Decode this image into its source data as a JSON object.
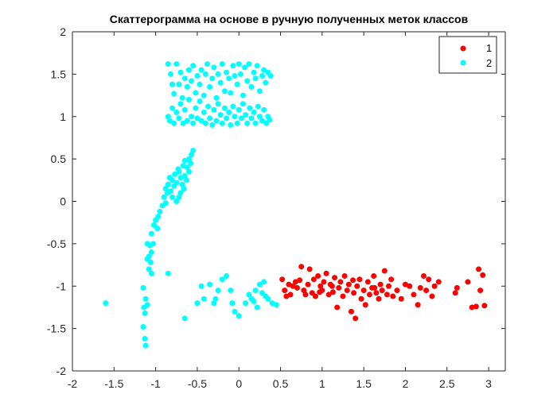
{
  "chart_data": {
    "type": "scatter",
    "title": "Скаттерограмма на основе в ручную полученных меток классов",
    "xlabel": "",
    "ylabel": "",
    "xlim": [
      -2,
      3.2
    ],
    "ylim": [
      -2,
      2
    ],
    "xticks": [
      -2,
      -1.5,
      -1,
      -0.5,
      0,
      0.5,
      1,
      1.5,
      2,
      2.5,
      3
    ],
    "yticks": [
      -2,
      -1.5,
      -1,
      -0.5,
      0,
      0.5,
      1,
      1.5,
      2
    ],
    "xtick_labels": [
      "-2",
      "-1.5",
      "-1",
      "-0.5",
      "0",
      "0.5",
      "1",
      "1.5",
      "2",
      "2.5",
      "3"
    ],
    "ytick_labels": [
      "-2",
      "-1.5",
      "-1",
      "-0.5",
      "0",
      "0.5",
      "1",
      "1.5",
      "2"
    ],
    "grid": false,
    "legend_position": "top-right",
    "series": [
      {
        "name": "1",
        "color": "#ff0000",
        "points": [
          [
            0.52,
            -0.92
          ],
          [
            0.55,
            -1.05
          ],
          [
            0.57,
            -1.12
          ],
          [
            0.6,
            -0.98
          ],
          [
            0.62,
            -1.1
          ],
          [
            0.65,
            -1.0
          ],
          [
            0.68,
            -0.95
          ],
          [
            0.7,
            -1.02
          ],
          [
            0.73,
            -0.93
          ],
          [
            0.75,
            -0.77
          ],
          [
            0.78,
            -1.05
          ],
          [
            0.8,
            -1.1
          ],
          [
            0.83,
            -0.98
          ],
          [
            0.85,
            -0.8
          ],
          [
            0.88,
            -1.08
          ],
          [
            0.9,
            -0.92
          ],
          [
            0.92,
            -1.12
          ],
          [
            0.95,
            -0.88
          ],
          [
            0.98,
            -1.0
          ],
          [
            1.0,
            -1.05
          ],
          [
            1.02,
            -0.95
          ],
          [
            1.05,
            -0.85
          ],
          [
            1.08,
            -1.1
          ],
          [
            1.1,
            -0.98
          ],
          [
            1.13,
            -1.07
          ],
          [
            1.15,
            -0.9
          ],
          [
            1.18,
            -1.25
          ],
          [
            1.2,
            -1.02
          ],
          [
            1.22,
            -0.95
          ],
          [
            1.25,
            -1.12
          ],
          [
            1.27,
            -0.88
          ],
          [
            1.3,
            -1.05
          ],
          [
            1.32,
            -0.98
          ],
          [
            1.35,
            -1.3
          ],
          [
            1.38,
            -1.08
          ],
          [
            1.4,
            -1.38
          ],
          [
            1.42,
            -1.0
          ],
          [
            1.45,
            -0.92
          ],
          [
            1.47,
            -1.15
          ],
          [
            1.5,
            -1.05
          ],
          [
            1.52,
            -1.22
          ],
          [
            1.55,
            -0.95
          ],
          [
            1.57,
            -1.1
          ],
          [
            1.6,
            -1.02
          ],
          [
            1.62,
            -0.88
          ],
          [
            1.65,
            -1.08
          ],
          [
            1.68,
            -1.15
          ],
          [
            1.7,
            -0.98
          ],
          [
            1.72,
            -1.05
          ],
          [
            1.75,
            -0.82
          ],
          [
            1.78,
            -1.1
          ],
          [
            1.8,
            -1.0
          ],
          [
            1.83,
            -0.92
          ],
          [
            1.85,
            -1.12
          ],
          [
            1.9,
            -1.05
          ],
          [
            1.95,
            -1.15
          ],
          [
            2.0,
            -0.98
          ],
          [
            2.05,
            -1.0
          ],
          [
            2.1,
            -1.1
          ],
          [
            2.15,
            -1.22
          ],
          [
            2.18,
            -1.02
          ],
          [
            2.22,
            -0.88
          ],
          [
            2.25,
            -1.05
          ],
          [
            2.28,
            -0.92
          ],
          [
            2.32,
            -1.12
          ],
          [
            2.35,
            -1.0
          ],
          [
            2.4,
            -0.95
          ],
          [
            2.6,
            -1.08
          ],
          [
            2.62,
            -1.02
          ],
          [
            2.75,
            -0.95
          ],
          [
            2.8,
            -1.25
          ],
          [
            2.85,
            -1.24
          ],
          [
            2.88,
            -0.8
          ],
          [
            2.9,
            -1.05
          ],
          [
            2.93,
            -0.87
          ],
          [
            2.95,
            -1.23
          ],
          [
            1.12,
            -1.0
          ],
          [
            1.37,
            -0.93
          ],
          [
            1.63,
            -1.02
          ],
          [
            0.97,
            -1.07
          ]
        ]
      },
      {
        "name": "2",
        "color": "#00ffff",
        "points": [
          [
            -0.85,
            1.62
          ],
          [
            -0.82,
            1.5
          ],
          [
            -0.8,
            1.38
          ],
          [
            -0.78,
            1.27
          ],
          [
            -0.75,
            1.62
          ],
          [
            -0.72,
            1.38
          ],
          [
            -0.7,
            1.52
          ],
          [
            -0.68,
            1.22
          ],
          [
            -0.65,
            1.45
          ],
          [
            -0.62,
            1.35
          ],
          [
            -0.6,
            1.55
          ],
          [
            -0.57,
            1.42
          ],
          [
            -0.55,
            1.6
          ],
          [
            -0.52,
            1.28
          ],
          [
            -0.5,
            1.48
          ],
          [
            -0.47,
            1.38
          ],
          [
            -0.45,
            1.55
          ],
          [
            -0.42,
            1.25
          ],
          [
            -0.4,
            1.5
          ],
          [
            -0.38,
            1.62
          ],
          [
            -0.35,
            1.35
          ],
          [
            -0.32,
            1.45
          ],
          [
            -0.3,
            1.58
          ],
          [
            -0.27,
            1.22
          ],
          [
            -0.25,
            1.5
          ],
          [
            -0.22,
            1.4
          ],
          [
            -0.2,
            1.62
          ],
          [
            -0.17,
            1.3
          ],
          [
            -0.15,
            1.52
          ],
          [
            -0.12,
            1.45
          ],
          [
            -0.1,
            1.28
          ],
          [
            -0.07,
            1.6
          ],
          [
            -0.05,
            1.48
          ],
          [
            -0.02,
            1.38
          ],
          [
            0.0,
            1.62
          ],
          [
            0.02,
            1.5
          ],
          [
            0.05,
            1.25
          ],
          [
            0.07,
            1.58
          ],
          [
            0.1,
            1.42
          ],
          [
            0.12,
            1.62
          ],
          [
            0.15,
            1.35
          ],
          [
            0.18,
            1.52
          ],
          [
            0.2,
            1.45
          ],
          [
            0.22,
            1.6
          ],
          [
            0.25,
            1.3
          ],
          [
            0.28,
            1.48
          ],
          [
            0.3,
            1.55
          ],
          [
            0.32,
            1.4
          ],
          [
            0.35,
            1.52
          ],
          [
            0.38,
            1.48
          ],
          [
            -0.85,
            1.0
          ],
          [
            -0.83,
            0.95
          ],
          [
            -0.8,
            1.1
          ],
          [
            -0.78,
            0.92
          ],
          [
            -0.75,
            1.05
          ],
          [
            -0.72,
            0.98
          ],
          [
            -0.7,
            1.15
          ],
          [
            -0.67,
            0.92
          ],
          [
            -0.65,
            1.08
          ],
          [
            -0.62,
            0.95
          ],
          [
            -0.6,
            1.2
          ],
          [
            -0.57,
            1.0
          ],
          [
            -0.55,
            0.92
          ],
          [
            -0.52,
            1.1
          ],
          [
            -0.5,
            0.98
          ],
          [
            -0.47,
            1.18
          ],
          [
            -0.45,
            0.95
          ],
          [
            -0.42,
            1.05
          ],
          [
            -0.4,
            0.92
          ],
          [
            -0.37,
            1.12
          ],
          [
            -0.35,
            0.98
          ],
          [
            -0.32,
            0.9
          ],
          [
            -0.3,
            1.08
          ],
          [
            -0.27,
            0.95
          ],
          [
            -0.25,
            1.15
          ],
          [
            -0.22,
            1.02
          ],
          [
            -0.2,
            0.92
          ],
          [
            -0.17,
            1.1
          ],
          [
            -0.15,
            0.98
          ],
          [
            -0.12,
            1.05
          ],
          [
            -0.1,
            0.9
          ],
          [
            -0.07,
            1.12
          ],
          [
            -0.05,
            1.0
          ],
          [
            -0.02,
            0.92
          ],
          [
            0.0,
            1.08
          ],
          [
            0.03,
            0.98
          ],
          [
            0.05,
            1.15
          ],
          [
            0.08,
            1.02
          ],
          [
            0.1,
            0.92
          ],
          [
            0.13,
            1.1
          ],
          [
            0.15,
            0.98
          ],
          [
            0.18,
            1.05
          ],
          [
            0.2,
            0.92
          ],
          [
            0.23,
            1.12
          ],
          [
            0.25,
            1.0
          ],
          [
            0.28,
            0.95
          ],
          [
            0.3,
            1.08
          ],
          [
            0.33,
            0.92
          ],
          [
            0.35,
            1.0
          ],
          [
            0.37,
            0.96
          ],
          [
            -0.55,
            0.6
          ],
          [
            -0.57,
            0.55
          ],
          [
            -0.6,
            0.5
          ],
          [
            -0.58,
            0.45
          ],
          [
            -0.62,
            0.4
          ],
          [
            -0.6,
            0.35
          ],
          [
            -0.65,
            0.3
          ],
          [
            -0.63,
            0.25
          ],
          [
            -0.68,
            0.2
          ],
          [
            -0.66,
            0.15
          ],
          [
            -0.7,
            0.1
          ],
          [
            -0.72,
            0.05
          ],
          [
            -0.75,
            0.0
          ],
          [
            -0.73,
            0.38
          ],
          [
            -0.77,
            0.32
          ],
          [
            -0.8,
            0.25
          ],
          [
            -0.78,
            0.18
          ],
          [
            -0.82,
            0.12
          ],
          [
            -0.85,
            0.2
          ],
          [
            -0.83,
            0.28
          ],
          [
            -0.88,
            0.15
          ],
          [
            -0.86,
            0.1
          ],
          [
            -0.9,
            0.05
          ],
          [
            -0.88,
            -0.02
          ],
          [
            -0.67,
            0.42
          ],
          [
            -0.7,
            0.28
          ],
          [
            -0.75,
            0.22
          ],
          [
            -0.8,
            0.05
          ],
          [
            -0.72,
            0.35
          ],
          [
            -0.65,
            0.48
          ],
          [
            -0.92,
            -0.05
          ],
          [
            -0.95,
            -0.12
          ],
          [
            -0.97,
            -0.18
          ],
          [
            -1.0,
            -0.22
          ],
          [
            -1.02,
            -0.28
          ],
          [
            -0.98,
            -0.32
          ],
          [
            -1.05,
            -0.38
          ],
          [
            -1.03,
            -0.5
          ],
          [
            -1.07,
            -0.52
          ],
          [
            -1.05,
            -0.6
          ],
          [
            -1.08,
            -0.65
          ],
          [
            -1.06,
            -0.72
          ],
          [
            -1.1,
            -0.68
          ],
          [
            -1.08,
            -0.8
          ],
          [
            -1.05,
            -0.85
          ],
          [
            -0.85,
            -0.85
          ],
          [
            -1.15,
            -1.02
          ],
          [
            -1.12,
            -1.15
          ],
          [
            -1.14,
            -1.25
          ],
          [
            -1.1,
            -1.22
          ],
          [
            -1.13,
            -1.32
          ],
          [
            -1.15,
            -1.48
          ],
          [
            -1.13,
            -1.62
          ],
          [
            -1.12,
            -1.7
          ],
          [
            -1.6,
            -1.2
          ],
          [
            -1.1,
            -0.5
          ],
          [
            -0.65,
            -1.38
          ],
          [
            -0.5,
            -1.2
          ],
          [
            -0.45,
            -1.0
          ],
          [
            -0.42,
            -1.15
          ],
          [
            -0.35,
            -0.98
          ],
          [
            -0.3,
            -1.2
          ],
          [
            -0.25,
            -1.05
          ],
          [
            -0.2,
            -0.92
          ],
          [
            -0.15,
            -0.88
          ],
          [
            -0.1,
            -1.05
          ],
          [
            -0.08,
            -1.2
          ],
          [
            -0.05,
            -1.3
          ],
          [
            0.0,
            -1.35
          ],
          [
            0.08,
            -1.2
          ],
          [
            0.12,
            -1.1
          ],
          [
            0.15,
            -1.15
          ],
          [
            0.2,
            -1.05
          ],
          [
            0.22,
            -1.25
          ],
          [
            0.25,
            -0.98
          ],
          [
            0.28,
            -1.08
          ],
          [
            0.3,
            -0.95
          ],
          [
            0.32,
            -1.12
          ],
          [
            0.35,
            -1.15
          ],
          [
            0.4,
            -1.2
          ],
          [
            0.45,
            -1.22
          ],
          [
            -0.28,
            -1.15
          ],
          [
            0.18,
            -1.18
          ]
        ]
      }
    ]
  }
}
